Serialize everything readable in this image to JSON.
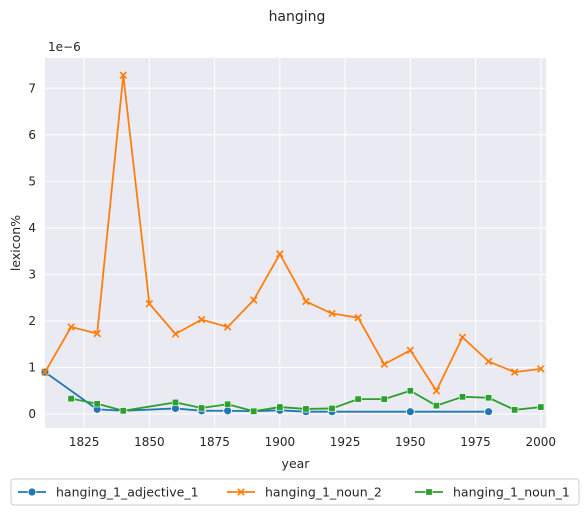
{
  "chart_data": {
    "type": "line",
    "title": "hanging",
    "xlabel": "year",
    "ylabel": "lexicon%",
    "offset_label": "1e−6",
    "xlim": [
      1810,
      2002
    ],
    "ylim": [
      -0.3,
      7.65
    ],
    "x_ticks": [
      1825,
      1850,
      1875,
      1900,
      1925,
      1950,
      1975,
      2000
    ],
    "y_ticks": [
      0,
      1,
      2,
      3,
      4,
      5,
      6,
      7
    ],
    "grid": true,
    "legend_position": "bottom",
    "series": [
      {
        "name": "hanging_1_adjective_1",
        "color": "#1f77b4",
        "marker": "circle",
        "x": [
          1810,
          1830,
          1840,
          1860,
          1870,
          1880,
          1890,
          1900,
          1910,
          1920,
          1950,
          1980
        ],
        "y": [
          0.9,
          0.1,
          0.07,
          0.12,
          0.07,
          0.07,
          0.06,
          0.08,
          0.05,
          0.05,
          0.05,
          0.05
        ]
      },
      {
        "name": "hanging_1_noun_2",
        "color": "#ff7f0e",
        "marker": "x",
        "x": [
          1810,
          1820,
          1830,
          1840,
          1850,
          1860,
          1870,
          1880,
          1890,
          1900,
          1910,
          1920,
          1930,
          1940,
          1950,
          1960,
          1970,
          1980,
          1990,
          2000
        ],
        "y": [
          0.9,
          1.87,
          1.73,
          7.28,
          2.37,
          1.72,
          2.03,
          1.87,
          2.45,
          3.44,
          2.42,
          2.16,
          2.07,
          1.07,
          1.37,
          0.5,
          1.65,
          1.13,
          0.9,
          0.97
        ]
      },
      {
        "name": "hanging_1_noun_1",
        "color": "#2ca02c",
        "marker": "square",
        "x": [
          1820,
          1830,
          1840,
          1860,
          1870,
          1880,
          1890,
          1900,
          1910,
          1920,
          1930,
          1940,
          1950,
          1960,
          1970,
          1980,
          1990,
          2000
        ],
        "y": [
          0.33,
          0.22,
          0.07,
          0.25,
          0.13,
          0.21,
          0.06,
          0.15,
          0.11,
          0.12,
          0.32,
          0.32,
          0.5,
          0.18,
          0.37,
          0.35,
          0.09,
          0.15
        ]
      }
    ]
  }
}
